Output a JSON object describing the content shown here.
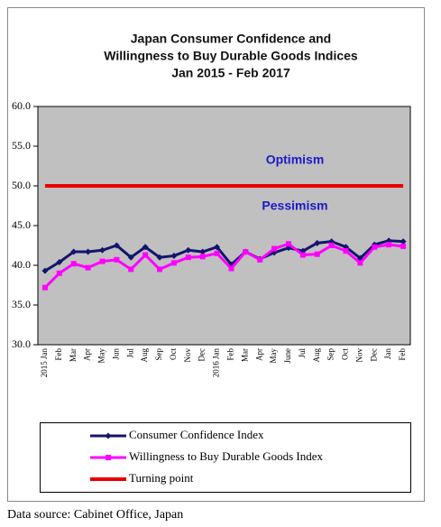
{
  "chart_data": {
    "type": "line",
    "title": [
      "Japan Consumer Confidence and",
      "Willingness to Buy Durable Goods Indices",
      "Jan 2015 - Feb 2017"
    ],
    "categories": [
      "2015 Jan",
      "Feb",
      "Mar",
      "Apr",
      "May",
      "Jun",
      "Jul",
      "Aug",
      "Sep",
      "Oct",
      "Nov",
      "Dec",
      "2016 Jan",
      "Feb",
      "Mar",
      "Apr",
      "May",
      "June",
      "Jul",
      "Aug",
      "Sep",
      "Oct",
      "Nov",
      "Dec",
      "Jan",
      "Feb"
    ],
    "series": [
      {
        "name": "Consumer Confidence Index",
        "color": "#14146e",
        "marker": "diamond",
        "values": [
          39.3,
          40.4,
          41.7,
          41.7,
          41.9,
          42.5,
          41.0,
          42.3,
          41.0,
          41.2,
          41.9,
          41.7,
          42.3,
          40.1,
          41.7,
          40.8,
          41.6,
          42.2,
          41.8,
          42.8,
          43.0,
          42.3,
          40.9,
          42.6,
          43.1,
          43.0
        ]
      },
      {
        "name": "Willingness to Buy Durable Goods Index",
        "color": "#ff00ff",
        "marker": "square",
        "values": [
          37.2,
          39.0,
          40.2,
          39.7,
          40.5,
          40.7,
          39.5,
          41.3,
          39.5,
          40.3,
          41.0,
          41.1,
          41.5,
          39.6,
          41.7,
          40.7,
          42.1,
          42.7,
          41.3,
          41.4,
          42.5,
          41.8,
          40.3,
          42.3,
          42.6,
          42.4
        ]
      },
      {
        "name": "Turning point",
        "color": "#e80000",
        "marker": "none",
        "values": [
          50,
          50,
          50,
          50,
          50,
          50,
          50,
          50,
          50,
          50,
          50,
          50,
          50,
          50,
          50,
          50,
          50,
          50,
          50,
          50,
          50,
          50,
          50,
          50,
          50,
          50
        ]
      }
    ],
    "ylim": [
      30,
      60
    ],
    "yticks": [
      {
        "value": 30,
        "label": "30.0"
      },
      {
        "value": 35,
        "label": "35.0"
      },
      {
        "value": 40,
        "label": "40.0"
      },
      {
        "value": 45,
        "label": "45.0"
      },
      {
        "value": 50,
        "label": "50.0"
      },
      {
        "value": 55,
        "label": "55.0"
      },
      {
        "value": 60,
        "label": "60.0"
      }
    ],
    "grid": false,
    "annotations": [
      {
        "text": "Optimism",
        "value": 53.2
      },
      {
        "text": "Pessimism",
        "value": 47.4
      }
    ],
    "source": "Data source: Cabinet Office, Japan"
  }
}
